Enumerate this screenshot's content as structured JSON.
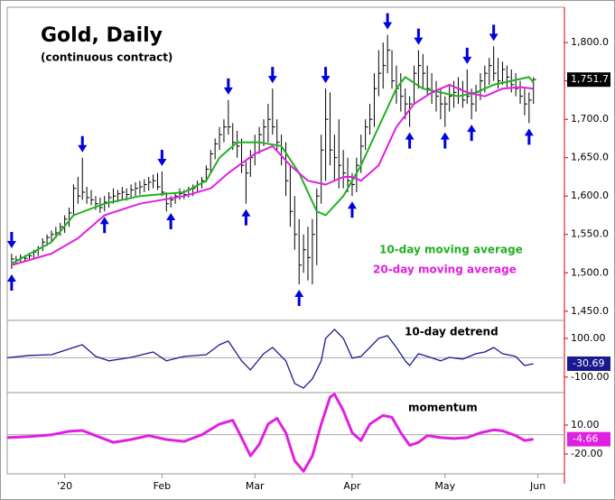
{
  "chart_data": [
    {
      "type": "ohlc",
      "title": "Gold, Daily",
      "subtitle": "(continuous contract)",
      "x": [
        1,
        2,
        3,
        4,
        5,
        6,
        7,
        8,
        9,
        10,
        11,
        12,
        13,
        14,
        15,
        16,
        17,
        18,
        19,
        20,
        21,
        22,
        23,
        24,
        25,
        26,
        27,
        28,
        29,
        30,
        31,
        32,
        33,
        34,
        35,
        36,
        37,
        38,
        39,
        40,
        41,
        42,
        43,
        44,
        45,
        46,
        47,
        48,
        49,
        50,
        51,
        52,
        53,
        54,
        55,
        56,
        57,
        58,
        59,
        60,
        61,
        62,
        63,
        64,
        65,
        66,
        67,
        68,
        69,
        70,
        71,
        72,
        73,
        74,
        75,
        76,
        77,
        78,
        79,
        80,
        81,
        82,
        83,
        84,
        85,
        86,
        87,
        88,
        89,
        90,
        91,
        92,
        93,
        94,
        95,
        96,
        97,
        98,
        99,
        100,
        101,
        102,
        103,
        104,
        105,
        106,
        107,
        108,
        109,
        110,
        111,
        112,
        113,
        114,
        115,
        116,
        117,
        118,
        119
      ],
      "high": [
        1525,
        1522,
        1524,
        1523,
        1526,
        1530,
        1535,
        1545,
        1550,
        1555,
        1560,
        1565,
        1575,
        1585,
        1615,
        1625,
        1650,
        1612,
        1608,
        1600,
        1598,
        1600,
        1605,
        1610,
        1608,
        1612,
        1610,
        1615,
        1618,
        1620,
        1622,
        1625,
        1628,
        1630,
        1632,
        1605,
        1600,
        1605,
        1610,
        1608,
        1612,
        1615,
        1620,
        1625,
        1640,
        1660,
        1675,
        1690,
        1700,
        1725,
        1695,
        1685,
        1675,
        1645,
        1660,
        1680,
        1690,
        1700,
        1720,
        1740,
        1700,
        1680,
        1670,
        1640,
        1600,
        1570,
        1550,
        1560,
        1570,
        1610,
        1680,
        1740,
        1735,
        1680,
        1700,
        1660,
        1650,
        1630,
        1650,
        1680,
        1700,
        1720,
        1760,
        1790,
        1800,
        1810,
        1790,
        1770,
        1760,
        1740,
        1730,
        1770,
        1790,
        1785,
        1770,
        1760,
        1750,
        1740,
        1730,
        1745,
        1750,
        1755,
        1750,
        1765,
        1740,
        1745,
        1760,
        1770,
        1780,
        1795,
        1780,
        1775,
        1770,
        1765,
        1760,
        1750,
        1740,
        1735,
        1755
      ],
      "low": [
        1505,
        1512,
        1514,
        1515,
        1516,
        1518,
        1522,
        1528,
        1535,
        1540,
        1545,
        1548,
        1552,
        1560,
        1575,
        1590,
        1595,
        1590,
        1588,
        1582,
        1578,
        1580,
        1585,
        1590,
        1592,
        1595,
        1594,
        1598,
        1600,
        1602,
        1605,
        1607,
        1610,
        1608,
        1600,
        1580,
        1585,
        1590,
        1595,
        1596,
        1598,
        1600,
        1605,
        1610,
        1618,
        1630,
        1648,
        1660,
        1670,
        1680,
        1660,
        1650,
        1630,
        1590,
        1625,
        1640,
        1655,
        1665,
        1670,
        1680,
        1660,
        1640,
        1600,
        1560,
        1530,
        1485,
        1500,
        1490,
        1485,
        1510,
        1590,
        1620,
        1640,
        1620,
        1610,
        1610,
        1605,
        1600,
        1605,
        1630,
        1660,
        1680,
        1690,
        1730,
        1740,
        1760,
        1740,
        1720,
        1710,
        1700,
        1690,
        1720,
        1740,
        1740,
        1730,
        1720,
        1710,
        1700,
        1690,
        1710,
        1715,
        1720,
        1715,
        1720,
        1700,
        1710,
        1725,
        1735,
        1745,
        1750,
        1740,
        1745,
        1740,
        1735,
        1730,
        1720,
        1705,
        1695,
        1720
      ],
      "close": [
        1518,
        1517,
        1520,
        1519,
        1522,
        1527,
        1532,
        1540,
        1546,
        1550,
        1552,
        1560,
        1570,
        1578,
        1610,
        1600,
        1605,
        1598,
        1595,
        1590,
        1585,
        1592,
        1598,
        1600,
        1603,
        1605,
        1602,
        1608,
        1610,
        1612,
        1615,
        1618,
        1620,
        1612,
        1605,
        1590,
        1595,
        1600,
        1603,
        1602,
        1608,
        1610,
        1615,
        1620,
        1635,
        1655,
        1668,
        1680,
        1690,
        1690,
        1670,
        1665,
        1640,
        1630,
        1650,
        1670,
        1680,
        1690,
        1700,
        1690,
        1670,
        1650,
        1620,
        1580,
        1550,
        1510,
        1530,
        1520,
        1550,
        1600,
        1660,
        1700,
        1660,
        1650,
        1640,
        1630,
        1620,
        1615,
        1640,
        1665,
        1690,
        1700,
        1740,
        1760,
        1770,
        1790,
        1750,
        1740,
        1730,
        1720,
        1720,
        1760,
        1770,
        1760,
        1740,
        1735,
        1730,
        1720,
        1720,
        1730,
        1735,
        1740,
        1725,
        1730,
        1720,
        1735,
        1750,
        1760,
        1770,
        1760,
        1750,
        1765,
        1755,
        1745,
        1740,
        1730,
        1720,
        1725,
        1751.7
      ],
      "bar_color": "#000000",
      "last_label": "1,751.7",
      "series": [
        {
          "name": "10-day moving average",
          "color": "#22b022",
          "x": [
            1,
            10,
            15,
            22,
            30,
            40,
            45,
            48,
            52,
            57,
            62,
            66,
            70,
            72,
            76,
            80,
            84,
            88,
            90,
            94,
            98,
            102,
            106,
            110,
            114,
            118,
            119
          ],
          "values": [
            1512,
            1540,
            1575,
            1590,
            1600,
            1605,
            1620,
            1650,
            1670,
            1670,
            1665,
            1630,
            1580,
            1575,
            1600,
            1640,
            1690,
            1740,
            1755,
            1740,
            1735,
            1730,
            1735,
            1745,
            1750,
            1755,
            1748
          ]
        },
        {
          "name": "20-day moving average",
          "color": "#e020e0",
          "x": [
            1,
            10,
            16,
            22,
            30,
            40,
            46,
            50,
            56,
            60,
            64,
            68,
            72,
            76,
            78,
            80,
            84,
            88,
            92,
            96,
            100,
            104,
            108,
            112,
            116,
            119
          ],
          "values": [
            1510,
            1525,
            1545,
            1575,
            1590,
            1600,
            1610,
            1630,
            1655,
            1665,
            1640,
            1620,
            1615,
            1625,
            1625,
            1620,
            1640,
            1690,
            1720,
            1735,
            1745,
            1735,
            1730,
            1740,
            1742,
            1740
          ]
        }
      ],
      "arrows_down": [
        1,
        17,
        35,
        50,
        60,
        72,
        86,
        93,
        104,
        110
      ],
      "arrows_up": [
        1,
        22,
        37,
        54,
        66,
        78,
        91,
        99,
        105,
        118
      ],
      "arrow_color": "#0000e0",
      "ylim": [
        1438,
        1846
      ],
      "yticks": [
        {
          "value": 1450,
          "label": "1,450.0"
        },
        {
          "value": 1500,
          "label": "1,500.0"
        },
        {
          "value": 1550,
          "label": "1,550.0"
        },
        {
          "value": 1600,
          "label": "1,600.0"
        },
        {
          "value": 1650,
          "label": "1,650.0"
        },
        {
          "value": 1700,
          "label": "1,700.0"
        },
        {
          "value": 1750,
          "label": "1,750.0"
        },
        {
          "value": 1800,
          "label": "1,800.0"
        }
      ]
    },
    {
      "type": "line",
      "title": "10-day detrend",
      "series": [
        {
          "name": "10-day detrend",
          "color": "#1a1a90",
          "x": [
            0,
            5,
            10,
            15,
            17,
            20,
            23,
            28,
            33,
            36,
            40,
            45,
            48,
            50,
            53,
            55,
            58,
            60,
            63,
            65,
            67,
            69,
            71,
            72,
            74,
            76,
            78,
            80,
            82,
            84,
            86,
            88,
            90,
            91,
            93,
            95,
            98,
            100,
            103,
            106,
            108,
            110,
            112,
            115,
            117,
            119
          ],
          "values": [
            0,
            12,
            16,
            53,
            67,
            7,
            -16,
            2,
            30,
            -16,
            7,
            16,
            67,
            86,
            -16,
            -63,
            21,
            53,
            -16,
            -133,
            -156,
            -109,
            -16,
            100,
            147,
            100,
            -2,
            7,
            53,
            100,
            114,
            53,
            -16,
            -40,
            21,
            7,
            -16,
            2,
            -7,
            21,
            30,
            53,
            21,
            7,
            -40,
            -30.69
          ]
        }
      ],
      "last_label": "-30.69",
      "ylim": [
        -180,
        193
      ],
      "yticks": [
        {
          "value": -100,
          "label": "-100.00"
        },
        {
          "value": 100,
          "label": "100.00"
        }
      ]
    },
    {
      "type": "line",
      "title": "momentum",
      "series": [
        {
          "name": "momentum",
          "color": "#e020e0",
          "x": [
            0,
            5,
            10,
            14,
            17,
            20,
            24,
            28,
            32,
            36,
            40,
            44,
            48,
            51,
            53,
            55,
            57,
            59,
            61,
            63,
            65,
            67,
            69,
            71,
            73,
            74,
            76,
            78,
            80,
            82,
            85,
            87,
            89,
            91,
            93,
            95,
            98,
            101,
            104,
            107,
            110,
            112,
            115,
            117,
            119
          ],
          "values": [
            -3,
            -2,
            0,
            3.5,
            4.4,
            -1,
            -8,
            -5,
            -1,
            -5,
            -7,
            0,
            11,
            15,
            -3,
            -22,
            -10,
            11,
            17,
            2,
            -27,
            -38,
            -22,
            11,
            39,
            42,
            25,
            2,
            -6,
            11,
            20,
            18,
            2,
            -11,
            -8,
            -1,
            -3,
            -4,
            -3,
            2,
            5,
            4,
            -1,
            -6,
            -4.66
          ]
        }
      ],
      "last_label": "-4.66",
      "ylim": [
        -40.6,
        43.7
      ],
      "yticks": [
        {
          "value": -20,
          "label": "-20.00"
        },
        {
          "value": 10,
          "label": "10.00"
        }
      ],
      "xlim": [
        0,
        126
      ],
      "xticks": [
        {
          "value": 13,
          "label": "'20"
        },
        {
          "value": 35,
          "label": "Feb"
        },
        {
          "value": 56,
          "label": "Mar"
        },
        {
          "value": 78,
          "label": "Apr"
        },
        {
          "value": 99,
          "label": "May"
        },
        {
          "value": 120,
          "label": "Jun"
        }
      ]
    }
  ]
}
